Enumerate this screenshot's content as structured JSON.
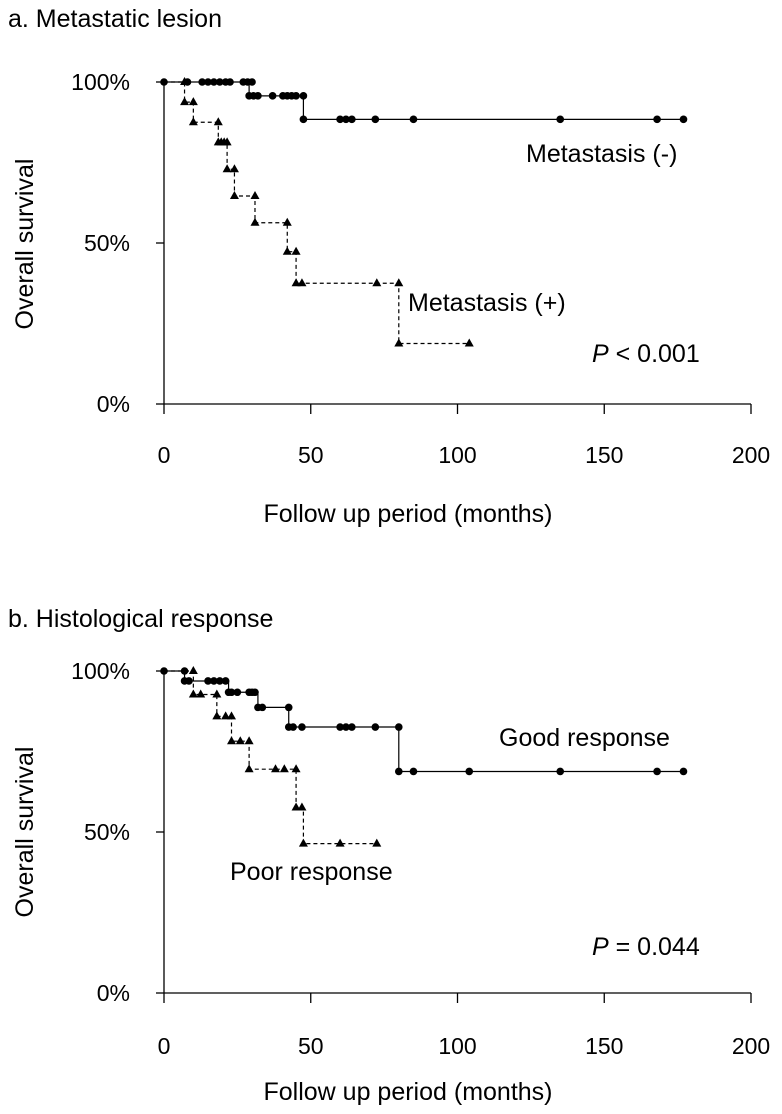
{
  "chart_data": [
    {
      "type": "line",
      "subtype": "kaplan-meier",
      "title": "a. Metastatic lesion",
      "xlabel": "Follow up period (months)",
      "ylabel": "Overall survival",
      "xlim": [
        0,
        200
      ],
      "ylim": [
        0,
        100
      ],
      "xticks": [
        "0",
        "50",
        "100",
        "150",
        "200"
      ],
      "xtick_values": [
        0,
        50,
        100,
        150,
        200
      ],
      "yticks": [
        "0%",
        "50%",
        "100%"
      ],
      "ytick_values": [
        0,
        50,
        100
      ],
      "grid": false,
      "p_label": "P",
      "p_text": " < 0.001",
      "series": [
        {
          "name": "Metastasis (-)",
          "style": "solid",
          "marker": "circle",
          "end": 177,
          "steps": [
            [
              0,
              100
            ],
            [
              29,
              95.7
            ],
            [
              47.5,
              88.4
            ]
          ],
          "markers": [
            [
              0,
              100
            ],
            [
              8,
              100
            ],
            [
              13,
              100
            ],
            [
              15,
              100
            ],
            [
              17,
              100
            ],
            [
              19,
              100
            ],
            [
              21,
              100
            ],
            [
              22.5,
              100
            ],
            [
              27,
              100
            ],
            [
              28.5,
              100
            ],
            [
              30,
              100
            ],
            [
              29,
              95.7
            ],
            [
              30.5,
              95.7
            ],
            [
              32,
              95.7
            ],
            [
              37,
              95.7
            ],
            [
              40.5,
              95.7
            ],
            [
              42,
              95.7
            ],
            [
              43.5,
              95.7
            ],
            [
              45,
              95.7
            ],
            [
              47.5,
              95.7
            ],
            [
              47.5,
              88.4
            ],
            [
              60,
              88.4
            ],
            [
              62,
              88.4
            ],
            [
              64,
              88.4
            ],
            [
              72,
              88.4
            ],
            [
              85,
              88.4
            ],
            [
              135,
              88.4
            ],
            [
              168,
              88.4
            ],
            [
              177,
              88.4
            ]
          ]
        },
        {
          "name": "Metastasis (+)",
          "style": "dashed",
          "marker": "triangle",
          "end": 104,
          "steps": [
            [
              0,
              100
            ],
            [
              7,
              93.75
            ],
            [
              10,
              87.5
            ],
            [
              18.5,
              81.25
            ],
            [
              21.5,
              72.9
            ],
            [
              24,
              64.6
            ],
            [
              31,
              56.3
            ],
            [
              42,
              47.3
            ],
            [
              45,
              37.5
            ],
            [
              80,
              18.8
            ]
          ],
          "markers": [
            [
              7,
              100
            ],
            [
              7,
              93.75
            ],
            [
              10,
              93.75
            ],
            [
              10,
              87.5
            ],
            [
              18.5,
              87.5
            ],
            [
              18.5,
              81.25
            ],
            [
              19.5,
              81.25
            ],
            [
              20.5,
              81.25
            ],
            [
              21.5,
              81.25
            ],
            [
              21.5,
              72.9
            ],
            [
              24,
              72.9
            ],
            [
              24,
              64.6
            ],
            [
              31,
              64.6
            ],
            [
              31,
              56.3
            ],
            [
              42,
              56.3
            ],
            [
              42,
              47.3
            ],
            [
              45,
              47.3
            ],
            [
              45,
              37.5
            ],
            [
              47,
              37.5
            ],
            [
              72.5,
              37.5
            ],
            [
              80,
              37.5
            ],
            [
              80,
              18.8
            ],
            [
              104,
              18.8
            ]
          ]
        }
      ]
    },
    {
      "type": "line",
      "subtype": "kaplan-meier",
      "title": "b. Histological response",
      "xlabel": "Follow up period (months)",
      "ylabel": "Overall survival",
      "xlim": [
        0,
        200
      ],
      "ylim": [
        0,
        100
      ],
      "xticks": [
        "0",
        "50",
        "100",
        "150",
        "200"
      ],
      "xtick_values": [
        0,
        50,
        100,
        150,
        200
      ],
      "yticks": [
        "0%",
        "50%",
        "100%"
      ],
      "ytick_values": [
        0,
        50,
        100
      ],
      "grid": false,
      "p_label": "P",
      "p_text": " = 0.044",
      "series": [
        {
          "name": "Good response",
          "style": "solid",
          "marker": "circle",
          "end": 177,
          "steps": [
            [
              0,
              100
            ],
            [
              7,
              96.9
            ],
            [
              22,
              93.4
            ],
            [
              32,
              88.7
            ],
            [
              42.5,
              82.6
            ],
            [
              80,
              68.8
            ]
          ],
          "markers": [
            [
              0,
              100
            ],
            [
              7,
              100
            ],
            [
              7,
              96.9
            ],
            [
              8.5,
              96.9
            ],
            [
              15,
              96.9
            ],
            [
              17,
              96.9
            ],
            [
              19,
              96.9
            ],
            [
              21,
              96.9
            ],
            [
              22,
              93.4
            ],
            [
              23,
              93.4
            ],
            [
              25,
              93.4
            ],
            [
              29,
              93.4
            ],
            [
              30,
              93.4
            ],
            [
              31,
              93.4
            ],
            [
              32,
              88.7
            ],
            [
              33.5,
              88.7
            ],
            [
              42.5,
              88.7
            ],
            [
              42.5,
              82.6
            ],
            [
              44,
              82.6
            ],
            [
              47,
              82.6
            ],
            [
              60,
              82.6
            ],
            [
              62,
              82.6
            ],
            [
              64,
              82.6
            ],
            [
              72,
              82.6
            ],
            [
              80,
              82.6
            ],
            [
              80,
              68.8
            ],
            [
              85,
              68.8
            ],
            [
              104,
              68.8
            ],
            [
              135,
              68.8
            ],
            [
              168,
              68.8
            ],
            [
              177,
              68.8
            ]
          ]
        },
        {
          "name": "Poor response",
          "style": "dashed",
          "marker": "triangle",
          "end": 72.5,
          "steps": [
            [
              0,
              100
            ],
            [
              10,
              92.7
            ],
            [
              18,
              85.9
            ],
            [
              23,
              78.2
            ],
            [
              29,
              69.5
            ],
            [
              45,
              57.6
            ],
            [
              47.5,
              46.4
            ]
          ],
          "markers": [
            [
              10,
              100
            ],
            [
              10,
              92.7
            ],
            [
              12.5,
              92.7
            ],
            [
              18,
              92.7
            ],
            [
              18,
              85.9
            ],
            [
              21,
              85.9
            ],
            [
              23,
              85.9
            ],
            [
              23,
              78.2
            ],
            [
              26,
              78.2
            ],
            [
              29,
              78.2
            ],
            [
              29,
              69.5
            ],
            [
              38,
              69.5
            ],
            [
              41,
              69.5
            ],
            [
              45,
              69.5
            ],
            [
              45,
              57.6
            ],
            [
              47,
              57.6
            ],
            [
              47.5,
              46.4
            ],
            [
              60,
              46.4
            ],
            [
              72.5,
              46.4
            ]
          ]
        }
      ]
    }
  ]
}
